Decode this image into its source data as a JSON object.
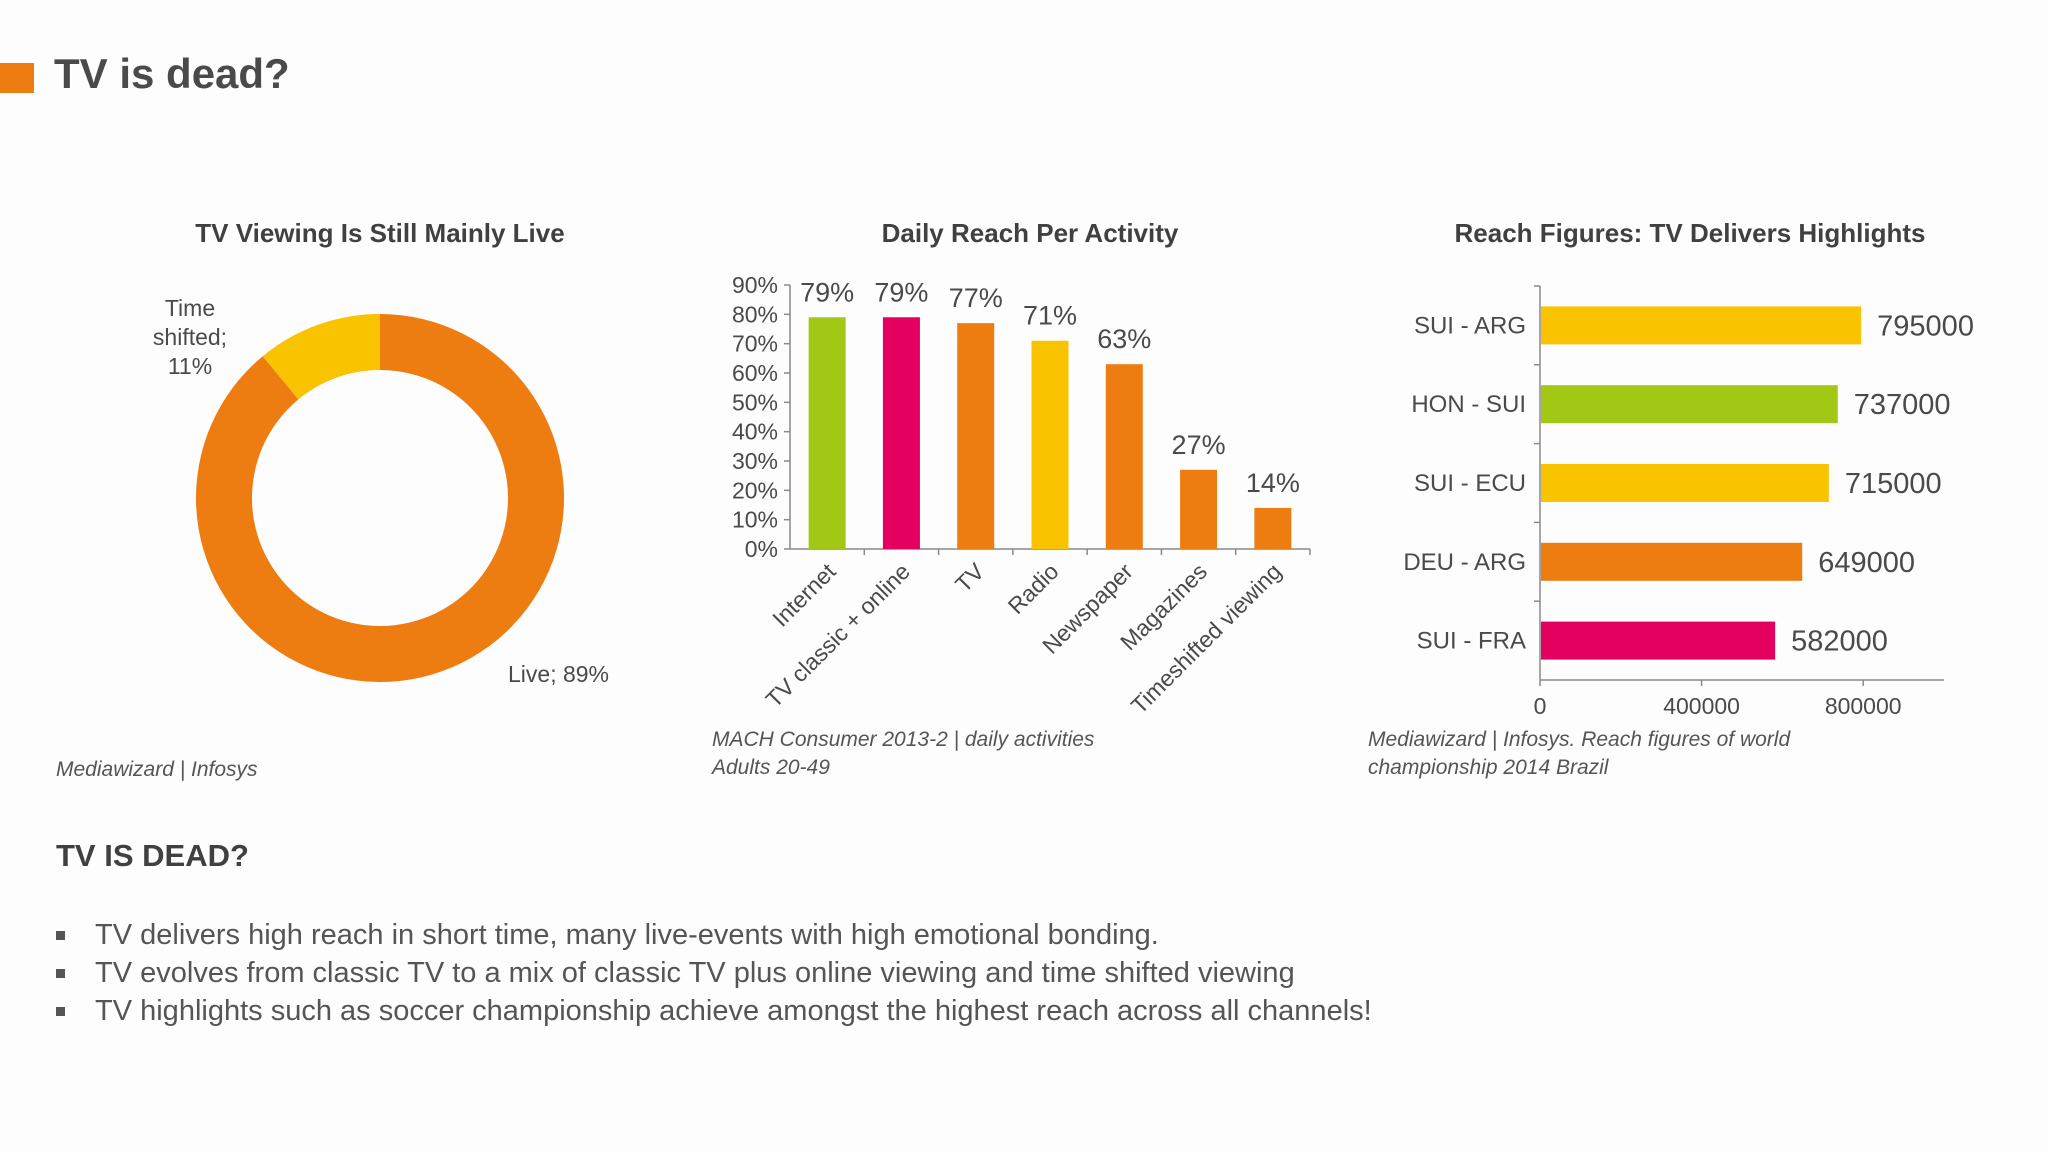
{
  "page": {
    "title": "TV is dead?",
    "accent": "#EE7D11"
  },
  "charts_meta": [
    {
      "title": "TV Viewing Is Still Mainly Live",
      "source_lines": [
        "Mediawizard | Infosys"
      ]
    },
    {
      "title": "Daily Reach Per Activity",
      "source_lines": [
        "MACH Consumer 2013-2 | daily activities",
        "Adults 20-49"
      ]
    },
    {
      "title": "Reach Figures: TV Delivers Highlights",
      "source_lines": [
        "Mediawizard | Infosys. Reach figures of world",
        "championship 2014 Brazil"
      ]
    }
  ],
  "chart_data": [
    {
      "type": "pie",
      "title": "TV Viewing Is Still Mainly Live",
      "donut": true,
      "slices": [
        {
          "label": "Live",
          "value": 89,
          "label_text": "Live; 89%",
          "color": "#EE7D11"
        },
        {
          "label": "Time shifted",
          "value": 11,
          "label_lines": [
            "Time",
            "shifted;",
            "11%"
          ],
          "color": "#F9C300"
        }
      ]
    },
    {
      "type": "bar",
      "title": "Daily Reach Per Activity",
      "categories": [
        "Internet",
        "TV classic + online",
        "TV",
        "Radio",
        "Newspaper",
        "Magazines",
        "Timeshifted viewing"
      ],
      "values": [
        79,
        79,
        77,
        71,
        63,
        27,
        14
      ],
      "data_labels": [
        "79%",
        "79%",
        "77%",
        "71%",
        "63%",
        "27%",
        "14%"
      ],
      "colors": [
        "#A3C715",
        "#E3005E",
        "#EE7D11",
        "#F9C300",
        "#EE7D11",
        "#EE7D11",
        "#EE7D11"
      ],
      "ylim": [
        0,
        90
      ],
      "yticks": [
        "0%",
        "10%",
        "20%",
        "30%",
        "40%",
        "50%",
        "60%",
        "70%",
        "80%",
        "90%"
      ]
    },
    {
      "type": "bar",
      "orientation": "horizontal",
      "title": "Reach Figures: TV Delivers Highlights",
      "categories": [
        "SUI - ARG",
        "HON - SUI",
        "SUI - ECU",
        "DEU - ARG",
        "SUI - FRA"
      ],
      "values": [
        795000,
        737000,
        715000,
        649000,
        582000
      ],
      "data_labels": [
        "795000",
        "737000",
        "715000",
        "649000",
        "582000"
      ],
      "colors": [
        "#F9C300",
        "#A3C715",
        "#F9C300",
        "#EE7D11",
        "#E3005E"
      ],
      "xlim": [
        0,
        1000000
      ],
      "xticks": [
        "0",
        "400000",
        "800000"
      ],
      "xtick_values": [
        0,
        400000,
        800000
      ]
    }
  ],
  "text_section": {
    "heading": "TV IS DEAD?",
    "bullets": [
      "TV delivers high reach in short time, many live-events with high emotional bonding.",
      "TV evolves from classic TV to a mix of classic TV plus online viewing and time shifted viewing",
      "TV highlights such as soccer championship achieve amongst the highest reach across all channels!"
    ]
  }
}
